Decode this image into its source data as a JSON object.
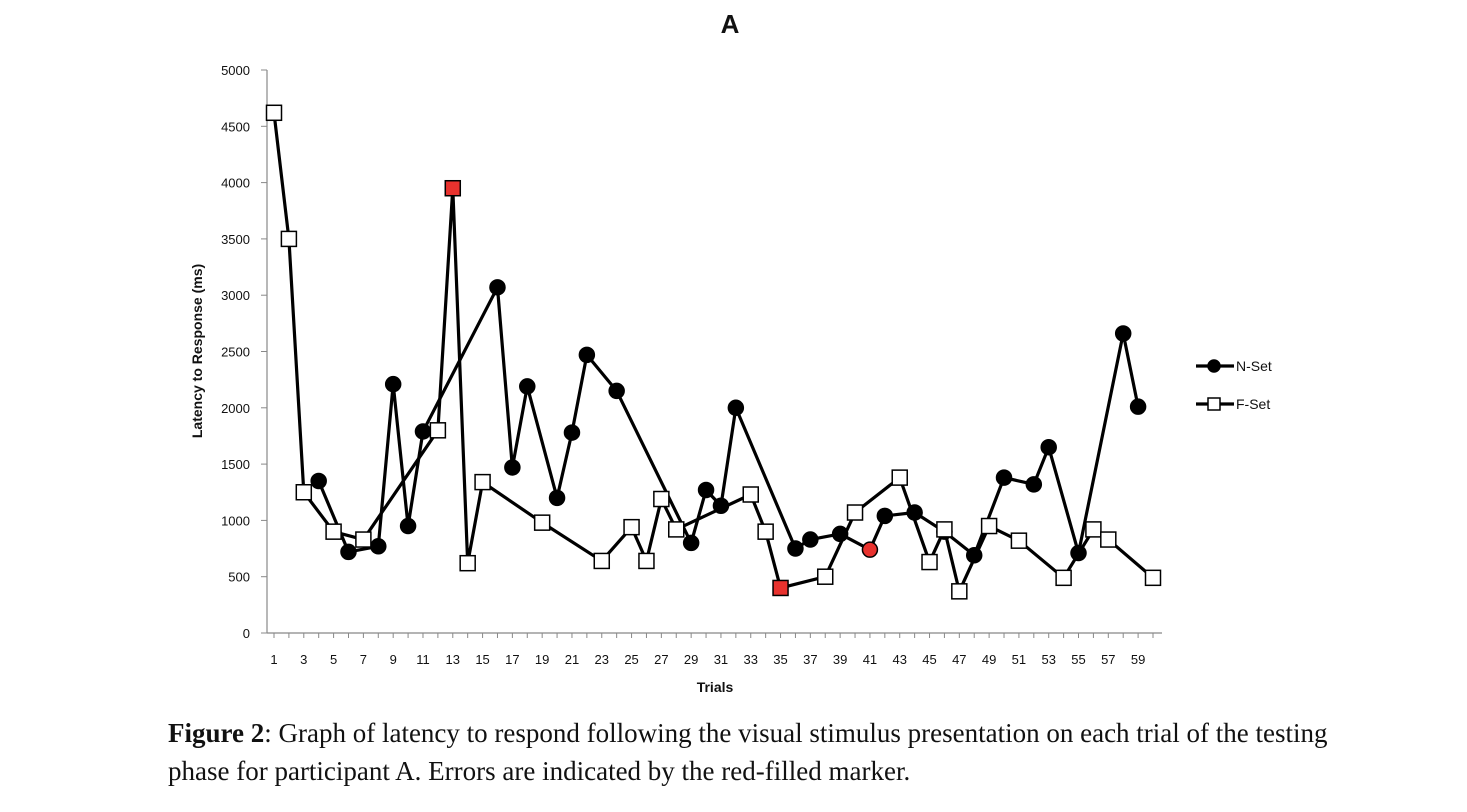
{
  "chart_data": {
    "type": "line",
    "title": "A",
    "xlabel": "Trials",
    "ylabel": "Latency to Response (ms)",
    "ylim": [
      0,
      5000
    ],
    "yticks": [
      0,
      500,
      1000,
      1500,
      2000,
      2500,
      3000,
      3500,
      4000,
      4500,
      5000
    ],
    "xlim": [
      1,
      60
    ],
    "xticks": [
      1,
      3,
      5,
      7,
      9,
      11,
      13,
      15,
      17,
      19,
      21,
      23,
      25,
      27,
      29,
      31,
      33,
      35,
      37,
      39,
      41,
      43,
      45,
      47,
      49,
      51,
      53,
      55,
      57,
      59
    ],
    "grid": false,
    "legend_position": "right",
    "series": [
      {
        "name": "N-Set",
        "marker": "circle",
        "points": [
          {
            "x": 4,
            "y": 1350
          },
          {
            "x": 6,
            "y": 720
          },
          {
            "x": 8,
            "y": 770
          },
          {
            "x": 9,
            "y": 2210
          },
          {
            "x": 10,
            "y": 950
          },
          {
            "x": 11,
            "y": 1790
          },
          {
            "x": 16,
            "y": 3070
          },
          {
            "x": 17,
            "y": 1470
          },
          {
            "x": 18,
            "y": 2190
          },
          {
            "x": 20,
            "y": 1200
          },
          {
            "x": 21,
            "y": 1780
          },
          {
            "x": 22,
            "y": 2470
          },
          {
            "x": 24,
            "y": 2150
          },
          {
            "x": 29,
            "y": 800
          },
          {
            "x": 30,
            "y": 1270
          },
          {
            "x": 31,
            "y": 1130
          },
          {
            "x": 32,
            "y": 2000
          },
          {
            "x": 36,
            "y": 750
          },
          {
            "x": 37,
            "y": 830
          },
          {
            "x": 39,
            "y": 880
          },
          {
            "x": 41,
            "y": 740,
            "error": true
          },
          {
            "x": 42,
            "y": 1040
          },
          {
            "x": 44,
            "y": 1070
          },
          {
            "x": 46,
            "y": 900
          },
          {
            "x": 48,
            "y": 690
          },
          {
            "x": 50,
            "y": 1380
          },
          {
            "x": 52,
            "y": 1320
          },
          {
            "x": 53,
            "y": 1650
          },
          {
            "x": 55,
            "y": 710
          },
          {
            "x": 58,
            "y": 2660
          },
          {
            "x": 59,
            "y": 2010
          }
        ]
      },
      {
        "name": "F-Set",
        "marker": "square",
        "points": [
          {
            "x": 1,
            "y": 4620
          },
          {
            "x": 2,
            "y": 3500
          },
          {
            "x": 3,
            "y": 1250
          },
          {
            "x": 5,
            "y": 900
          },
          {
            "x": 7,
            "y": 830
          },
          {
            "x": 12,
            "y": 1800
          },
          {
            "x": 13,
            "y": 3950,
            "error": true
          },
          {
            "x": 14,
            "y": 620
          },
          {
            "x": 15,
            "y": 1340
          },
          {
            "x": 19,
            "y": 980
          },
          {
            "x": 23,
            "y": 640
          },
          {
            "x": 25,
            "y": 940
          },
          {
            "x": 26,
            "y": 640
          },
          {
            "x": 27,
            "y": 1190
          },
          {
            "x": 28,
            "y": 920
          },
          {
            "x": 33,
            "y": 1230
          },
          {
            "x": 34,
            "y": 900
          },
          {
            "x": 35,
            "y": 400,
            "error": true
          },
          {
            "x": 38,
            "y": 500
          },
          {
            "x": 40,
            "y": 1070
          },
          {
            "x": 43,
            "y": 1380
          },
          {
            "x": 45,
            "y": 630
          },
          {
            "x": 46,
            "y": 920
          },
          {
            "x": 47,
            "y": 370
          },
          {
            "x": 49,
            "y": 950
          },
          {
            "x": 51,
            "y": 820
          },
          {
            "x": 54,
            "y": 490
          },
          {
            "x": 56,
            "y": 920
          },
          {
            "x": 57,
            "y": 830
          },
          {
            "x": 60,
            "y": 490
          }
        ]
      }
    ],
    "error_color": "#e8322e"
  },
  "caption": {
    "label": "Figure 2",
    "text": ": Graph of latency to respond following the visual stimulus presentation on each trial of the testing phase for participant A. Errors are indicated by the red-filled marker."
  }
}
